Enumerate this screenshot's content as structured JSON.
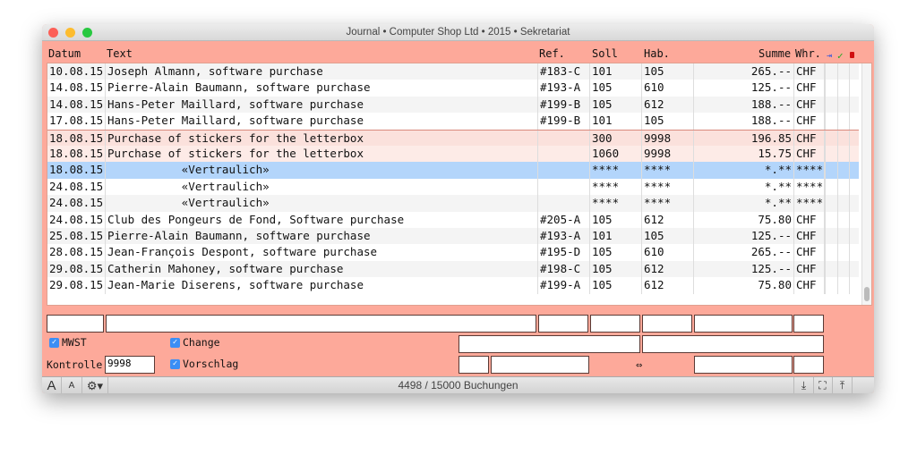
{
  "window": {
    "title": "Journal • Computer Shop Ltd • 2015 • Sekretariat"
  },
  "columns": {
    "datum": "Datum",
    "text": "Text",
    "ref": "Ref.",
    "soll": "Soll",
    "hab": "Hab.",
    "summe": "Summe",
    "whr": "Whr."
  },
  "header_icons": [
    "export-icon",
    "check-icon",
    "lock-icon"
  ],
  "rows": [
    {
      "datum": "10.08.15",
      "text": "Joseph Almann, software purchase",
      "ref": "#183-C",
      "soll": "101",
      "hab": "105",
      "summe": "265.--",
      "whr": "CHF"
    },
    {
      "datum": "14.08.15",
      "text": "Pierre-Alain Baumann, software purchase",
      "ref": "#193-A",
      "soll": "105",
      "hab": "610",
      "summe": "125.--",
      "whr": "CHF"
    },
    {
      "datum": "14.08.15",
      "text": "Hans-Peter Maillard, software purchase",
      "ref": "#199-B",
      "soll": "105",
      "hab": "612",
      "summe": "188.--",
      "whr": "CHF"
    },
    {
      "datum": "17.08.15",
      "text": "Hans-Peter Maillard, software purchase",
      "ref": "#199-B",
      "soll": "101",
      "hab": "105",
      "summe": "188.--",
      "whr": "CHF"
    },
    {
      "datum": "18.08.15",
      "text": "Purchase of stickers for the letterbox",
      "ref": "",
      "soll": "300",
      "hab": "9998",
      "summe": "196.85",
      "whr": "CHF",
      "state": "grouped"
    },
    {
      "datum": "18.08.15",
      "text": "Purchase of stickers for the letterbox",
      "ref": "",
      "soll": "1060",
      "hab": "9998",
      "summe": "15.75",
      "whr": "CHF",
      "state": "grouped"
    },
    {
      "datum": "18.08.15",
      "text": "           «Vertraulich»",
      "ref": "",
      "soll": "****",
      "hab": "****",
      "summe": "*.**",
      "whr": "****",
      "state": "selected"
    },
    {
      "datum": "24.08.15",
      "text": "           «Vertraulich»",
      "ref": "",
      "soll": "****",
      "hab": "****",
      "summe": "*.**",
      "whr": "****"
    },
    {
      "datum": "24.08.15",
      "text": "           «Vertraulich»",
      "ref": "",
      "soll": "****",
      "hab": "****",
      "summe": "*.**",
      "whr": "****"
    },
    {
      "datum": "24.08.15",
      "text": "Club des Pongeurs de Fond, Software purchase",
      "ref": "#205-A",
      "soll": "105",
      "hab": "612",
      "summe": "75.80",
      "whr": "CHF"
    },
    {
      "datum": "25.08.15",
      "text": "Pierre-Alain Baumann, software purchase",
      "ref": "#193-A",
      "soll": "101",
      "hab": "105",
      "summe": "125.--",
      "whr": "CHF"
    },
    {
      "datum": "28.08.15",
      "text": "Jean-François Despont, software purchase",
      "ref": "#195-D",
      "soll": "105",
      "hab": "610",
      "summe": "265.--",
      "whr": "CHF"
    },
    {
      "datum": "29.08.15",
      "text": "Catherin Mahoney, software purchase",
      "ref": "#198-C",
      "soll": "105",
      "hab": "612",
      "summe": "125.--",
      "whr": "CHF"
    },
    {
      "datum": "29.08.15",
      "text": "Jean-Marie Diserens, software purchase",
      "ref": "#199-A",
      "soll": "105",
      "hab": "612",
      "summe": "75.80",
      "whr": "CHF"
    }
  ],
  "form": {
    "mwst_label": "MWST",
    "mwst_checked": true,
    "change_label": "Change",
    "change_checked": true,
    "vorschlag_label": "Vorschlag",
    "vorschlag_checked": true,
    "kontrolle_label": "Kontrolle",
    "kontrolle_value": "9998",
    "swap_symbol": "⇔"
  },
  "status": {
    "text": "4498 / 15000 Buchungen",
    "font_large": "A",
    "font_small": "A"
  },
  "colors": {
    "background": "#fda99a",
    "selected": "#b3d5fb",
    "grouped": "#fce4df"
  }
}
